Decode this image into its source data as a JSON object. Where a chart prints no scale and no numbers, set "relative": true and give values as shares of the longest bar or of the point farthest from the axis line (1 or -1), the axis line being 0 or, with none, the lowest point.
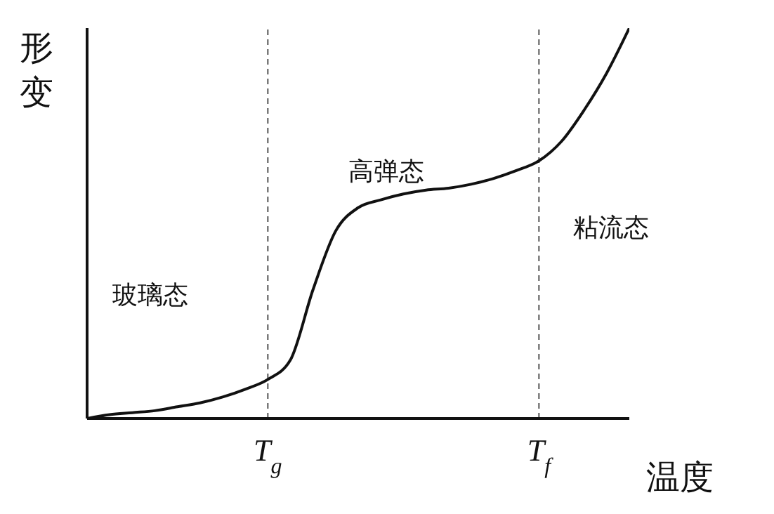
{
  "chart_data": {
    "type": "line",
    "relative": true,
    "xlabel": "温度",
    "ylabel": "形变",
    "categories": [
      null,
      null,
      null,
      null,
      null,
      null,
      null,
      null,
      "T$_{g}$",
      null,
      null,
      null,
      null,
      null,
      null,
      null,
      null,
      null,
      null,
      null,
      "T$_{f}$",
      null,
      null,
      null,
      null
    ],
    "series": [
      {
        "color": "#111111",
        "values": [
          0,
          0.01,
          0.015,
          0.02,
          0.03,
          0.04,
          0.055,
          0.075,
          0.1,
          0.15,
          0.33,
          0.48,
          0.54,
          0.56,
          0.575,
          0.585,
          0.59,
          0.6,
          0.615,
          0.635,
          0.66,
          0.71,
          0.79,
          0.885,
          1
        ]
      }
    ],
    "ref_lines": [
      {
        "axis": "x",
        "value": "T$_{g}$",
        "color": "#555555",
        "line_style": "dashed"
      },
      {
        "axis": "x",
        "value": "T$_{f}$",
        "color": "#555555",
        "line_style": "dashed"
      }
    ],
    "annotations": [
      "玻璃态",
      "高弹态",
      "粘流态"
    ],
    "grid": false,
    "legend": false,
    "marker": "none",
    "line_style": "solid"
  }
}
